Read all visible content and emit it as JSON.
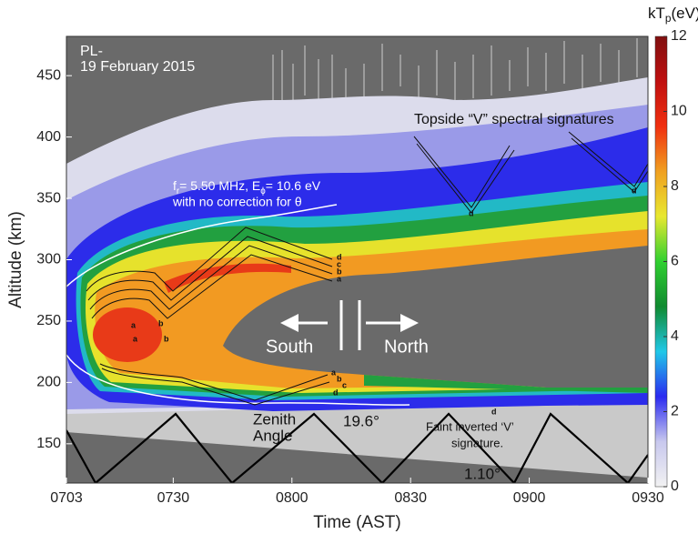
{
  "chart_data": {
    "type": "heatmap",
    "xlabel": "Time (AST)",
    "ylabel": "Altitude (km)",
    "xlim": [
      423,
      570
    ],
    "xticks": [
      {
        "value": 423,
        "label": "0703"
      },
      {
        "value": 450,
        "label": "0730"
      },
      {
        "value": 480,
        "label": "0800"
      },
      {
        "value": 510,
        "label": "0830"
      },
      {
        "value": 540,
        "label": "0900"
      },
      {
        "value": 570,
        "label": "0930"
      }
    ],
    "ylim": [
      118,
      482
    ],
    "yticks": [
      150,
      200,
      250,
      300,
      350,
      400,
      450
    ],
    "colorbar": {
      "label_parts": [
        "kT",
        "p",
        "(eV)"
      ],
      "lim": [
        0,
        12
      ],
      "ticks": [
        0,
        2,
        4,
        6,
        8,
        10,
        12
      ],
      "colors": [
        "#f2f2f2",
        "#c8c8ee",
        "#2a2af0",
        "#20c8e8",
        "#108a30",
        "#30d030",
        "#e8e830",
        "#f0a020",
        "#f03010",
        "#c01010",
        "#801010"
      ]
    },
    "annotations": {
      "station": "PL-",
      "date": "19 February 2015",
      "topside": "Topside “V” spectral signatures",
      "freq_parts": [
        "f",
        "r",
        "= 5.50 MHz, E",
        "ϕ",
        "= 10.6 eV"
      ],
      "correction": "with no correction for θ",
      "south": "South",
      "north": "North",
      "zenith_1": "Zenith",
      "zenith_2": "Angle",
      "zenith_max": "19.6°",
      "zenith_min": "1.10°",
      "faint_1": "Faint inverted ‘V’",
      "faint_2": "signature.",
      "letters": [
        "a",
        "b",
        "a",
        "b",
        "d",
        "c",
        "b",
        "a",
        "a",
        "b",
        "c",
        "d",
        "d",
        "d",
        "d"
      ]
    }
  }
}
